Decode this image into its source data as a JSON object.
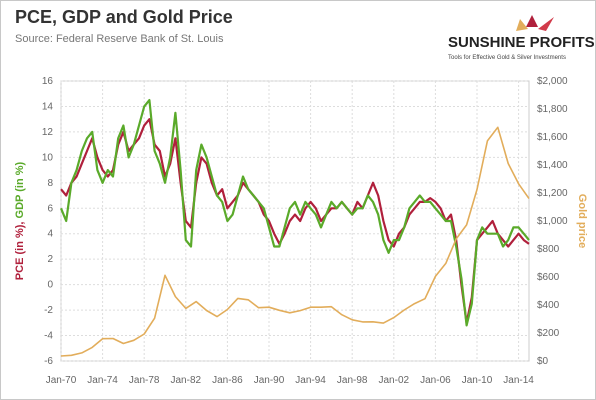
{
  "title": "PCE, GDP and Gold Price",
  "subtitle": "Source: Federal Reserve Bank of St. Louis",
  "logo": {
    "name": "SUNSHINE PROFITS",
    "tagline": "Tools for Effective Gold & Silver Investments"
  },
  "colors": {
    "pce": "#b0203c",
    "gdp": "#5aaa2a",
    "gold": "#e2ad5b",
    "grid": "#dddddd",
    "text": "#666666"
  },
  "chart_data": {
    "type": "line",
    "title": "PCE, GDP and Gold Price",
    "ylabel_left_parts": [
      {
        "text": "PCE  (in %), ",
        "color": "#b0203c"
      },
      {
        "text": "GDP  (in %)",
        "color": "#5aaa2a"
      }
    ],
    "ylabel_right": "Gold price",
    "x_ticks": [
      "Jan-70",
      "Jan-74",
      "Jan-78",
      "Jan-82",
      "Jan-86",
      "Jan-90",
      "Jan-94",
      "Jan-98",
      "Jan-02",
      "Jan-06",
      "Jan-10",
      "Jan-14"
    ],
    "y_left": {
      "min": -6,
      "max": 16,
      "ticks": [
        -6,
        -4,
        -2,
        0,
        2,
        4,
        6,
        8,
        10,
        12,
        14,
        16
      ]
    },
    "y_right": {
      "min": 0,
      "max": 2000,
      "ticks": [
        "$0",
        "$200",
        "$400",
        "$600",
        "$800",
        "$1,000",
        "$1,200",
        "$1,400",
        "$1,600",
        "$1,800",
        "$2,000"
      ]
    },
    "x_range": [
      1970.0,
      2015.0
    ],
    "grid": true,
    "series": [
      {
        "name": "PCE (in %)",
        "axis": "left",
        "color": "#b0203c",
        "points": [
          [
            1970,
            7.5
          ],
          [
            1970.5,
            7.0
          ],
          [
            1971,
            8.0
          ],
          [
            1971.5,
            8.5
          ],
          [
            1972,
            9.5
          ],
          [
            1972.5,
            10.5
          ],
          [
            1973,
            11.5
          ],
          [
            1973.5,
            10.0
          ],
          [
            1974,
            9.0
          ],
          [
            1974.5,
            8.5
          ],
          [
            1975,
            9.0
          ],
          [
            1975.5,
            11.0
          ],
          [
            1976,
            12.0
          ],
          [
            1976.5,
            10.5
          ],
          [
            1977,
            11.0
          ],
          [
            1977.5,
            11.5
          ],
          [
            1978,
            12.5
          ],
          [
            1978.5,
            13.0
          ],
          [
            1979,
            11.0
          ],
          [
            1979.5,
            10.5
          ],
          [
            1980,
            8.5
          ],
          [
            1980.5,
            9.5
          ],
          [
            1981,
            11.5
          ],
          [
            1981.5,
            8.0
          ],
          [
            1982,
            5.0
          ],
          [
            1982.5,
            4.5
          ],
          [
            1983,
            8.0
          ],
          [
            1983.5,
            10.0
          ],
          [
            1984,
            9.5
          ],
          [
            1984.5,
            8.0
          ],
          [
            1985,
            7.0
          ],
          [
            1985.5,
            7.5
          ],
          [
            1986,
            6.0
          ],
          [
            1986.5,
            6.5
          ],
          [
            1987,
            7.0
          ],
          [
            1987.5,
            8.0
          ],
          [
            1988,
            7.5
          ],
          [
            1988.5,
            7.0
          ],
          [
            1989,
            6.5
          ],
          [
            1989.5,
            5.5
          ],
          [
            1990,
            5.0
          ],
          [
            1990.5,
            4.0
          ],
          [
            1991,
            3.2
          ],
          [
            1991.5,
            4.0
          ],
          [
            1992,
            5.0
          ],
          [
            1992.5,
            5.5
          ],
          [
            1993,
            5.0
          ],
          [
            1993.5,
            6.0
          ],
          [
            1994,
            6.5
          ],
          [
            1994.5,
            6.0
          ],
          [
            1995,
            5.0
          ],
          [
            1995.5,
            5.5
          ],
          [
            1996,
            6.0
          ],
          [
            1996.5,
            6.0
          ],
          [
            1997,
            6.5
          ],
          [
            1997.5,
            6.0
          ],
          [
            1998,
            5.5
          ],
          [
            1998.5,
            6.5
          ],
          [
            1999,
            6.0
          ],
          [
            1999.5,
            7.0
          ],
          [
            2000,
            8.0
          ],
          [
            2000.5,
            7.0
          ],
          [
            2001,
            5.0
          ],
          [
            2001.5,
            3.5
          ],
          [
            2002,
            3.0
          ],
          [
            2002.5,
            4.0
          ],
          [
            2003,
            4.5
          ],
          [
            2003.5,
            5.5
          ],
          [
            2004,
            6.0
          ],
          [
            2004.5,
            6.5
          ],
          [
            2005,
            6.5
          ],
          [
            2005.5,
            6.8
          ],
          [
            2006,
            6.5
          ],
          [
            2006.5,
            6.0
          ],
          [
            2007,
            5.0
          ],
          [
            2007.5,
            5.5
          ],
          [
            2008,
            3.5
          ],
          [
            2008.5,
            0.0
          ],
          [
            2009,
            -3.0
          ],
          [
            2009.5,
            -1.0
          ],
          [
            2010,
            3.5
          ],
          [
            2010.5,
            4.0
          ],
          [
            2011,
            4.5
          ],
          [
            2011.5,
            5.0
          ],
          [
            2012,
            4.0
          ],
          [
            2012.5,
            3.5
          ],
          [
            2013,
            3.0
          ],
          [
            2013.5,
            3.5
          ],
          [
            2014,
            4.0
          ],
          [
            2014.5,
            3.5
          ],
          [
            2015,
            3.2
          ]
        ]
      },
      {
        "name": "GDP (in %)",
        "axis": "left",
        "color": "#5aaa2a",
        "points": [
          [
            1970,
            6.0
          ],
          [
            1970.5,
            5.0
          ],
          [
            1971,
            8.0
          ],
          [
            1971.5,
            9.0
          ],
          [
            1972,
            10.5
          ],
          [
            1972.5,
            11.5
          ],
          [
            1973,
            12.0
          ],
          [
            1973.5,
            9.0
          ],
          [
            1974,
            8.0
          ],
          [
            1974.5,
            9.0
          ],
          [
            1975,
            8.5
          ],
          [
            1975.5,
            11.5
          ],
          [
            1976,
            12.5
          ],
          [
            1976.5,
            10.0
          ],
          [
            1977,
            11.0
          ],
          [
            1977.5,
            12.5
          ],
          [
            1978,
            14.0
          ],
          [
            1978.5,
            14.5
          ],
          [
            1979,
            10.5
          ],
          [
            1979.5,
            9.5
          ],
          [
            1980,
            8.0
          ],
          [
            1980.5,
            10.0
          ],
          [
            1981,
            13.5
          ],
          [
            1981.5,
            9.0
          ],
          [
            1982,
            3.5
          ],
          [
            1982.5,
            3.0
          ],
          [
            1983,
            9.0
          ],
          [
            1983.5,
            11.0
          ],
          [
            1984,
            10.0
          ],
          [
            1984.5,
            8.5
          ],
          [
            1985,
            7.0
          ],
          [
            1985.5,
            6.5
          ],
          [
            1986,
            5.0
          ],
          [
            1986.5,
            5.5
          ],
          [
            1987,
            7.0
          ],
          [
            1987.5,
            8.5
          ],
          [
            1988,
            7.5
          ],
          [
            1988.5,
            7.0
          ],
          [
            1989,
            6.5
          ],
          [
            1989.5,
            6.0
          ],
          [
            1990,
            4.5
          ],
          [
            1990.5,
            3.0
          ],
          [
            1991,
            3.0
          ],
          [
            1991.5,
            4.5
          ],
          [
            1992,
            6.0
          ],
          [
            1992.5,
            6.5
          ],
          [
            1993,
            5.5
          ],
          [
            1993.5,
            6.5
          ],
          [
            1994,
            6.0
          ],
          [
            1994.5,
            5.5
          ],
          [
            1995,
            4.5
          ],
          [
            1995.5,
            5.5
          ],
          [
            1996,
            6.5
          ],
          [
            1996.5,
            6.0
          ],
          [
            1997,
            6.5
          ],
          [
            1997.5,
            6.0
          ],
          [
            1998,
            5.5
          ],
          [
            1998.5,
            6.0
          ],
          [
            1999,
            6.0
          ],
          [
            1999.5,
            7.0
          ],
          [
            2000,
            6.5
          ],
          [
            2000.5,
            5.5
          ],
          [
            2001,
            3.5
          ],
          [
            2001.5,
            2.5
          ],
          [
            2002,
            3.5
          ],
          [
            2002.5,
            3.5
          ],
          [
            2003,
            4.5
          ],
          [
            2003.5,
            6.0
          ],
          [
            2004,
            6.5
          ],
          [
            2004.5,
            7.0
          ],
          [
            2005,
            6.5
          ],
          [
            2005.5,
            6.5
          ],
          [
            2006,
            6.0
          ],
          [
            2006.5,
            5.5
          ],
          [
            2007,
            5.0
          ],
          [
            2007.5,
            5.0
          ],
          [
            2008,
            3.0
          ],
          [
            2008.5,
            0.5
          ],
          [
            2009,
            -3.2
          ],
          [
            2009.5,
            -1.5
          ],
          [
            2010,
            3.5
          ],
          [
            2010.5,
            4.5
          ],
          [
            2011,
            4.0
          ],
          [
            2011.5,
            4.0
          ],
          [
            2012,
            4.0
          ],
          [
            2012.5,
            3.0
          ],
          [
            2013,
            3.5
          ],
          [
            2013.5,
            4.5
          ],
          [
            2014,
            4.5
          ],
          [
            2014.5,
            4.0
          ],
          [
            2015,
            3.5
          ]
        ]
      },
      {
        "name": "Gold price",
        "axis": "right",
        "color": "#e2ad5b",
        "points": [
          [
            1970,
            36
          ],
          [
            1971,
            41
          ],
          [
            1972,
            58
          ],
          [
            1973,
            97
          ],
          [
            1974,
            159
          ],
          [
            1975,
            161
          ],
          [
            1976,
            125
          ],
          [
            1977,
            148
          ],
          [
            1978,
            193
          ],
          [
            1979,
            306
          ],
          [
            1980,
            612
          ],
          [
            1981,
            460
          ],
          [
            1982,
            376
          ],
          [
            1983,
            424
          ],
          [
            1984,
            361
          ],
          [
            1985,
            317
          ],
          [
            1986,
            368
          ],
          [
            1987,
            447
          ],
          [
            1988,
            437
          ],
          [
            1989,
            381
          ],
          [
            1990,
            384
          ],
          [
            1991,
            362
          ],
          [
            1992,
            344
          ],
          [
            1993,
            360
          ],
          [
            1994,
            384
          ],
          [
            1995,
            384
          ],
          [
            1996,
            388
          ],
          [
            1997,
            331
          ],
          [
            1998,
            294
          ],
          [
            1999,
            279
          ],
          [
            2000,
            280
          ],
          [
            2001,
            271
          ],
          [
            2002,
            310
          ],
          [
            2003,
            364
          ],
          [
            2004,
            410
          ],
          [
            2005,
            445
          ],
          [
            2006,
            604
          ],
          [
            2007,
            697
          ],
          [
            2008,
            872
          ],
          [
            2009,
            972
          ],
          [
            2010,
            1225
          ],
          [
            2011,
            1572
          ],
          [
            2012,
            1669
          ],
          [
            2013,
            1411
          ],
          [
            2014,
            1266
          ],
          [
            2015,
            1160
          ]
        ]
      }
    ]
  }
}
